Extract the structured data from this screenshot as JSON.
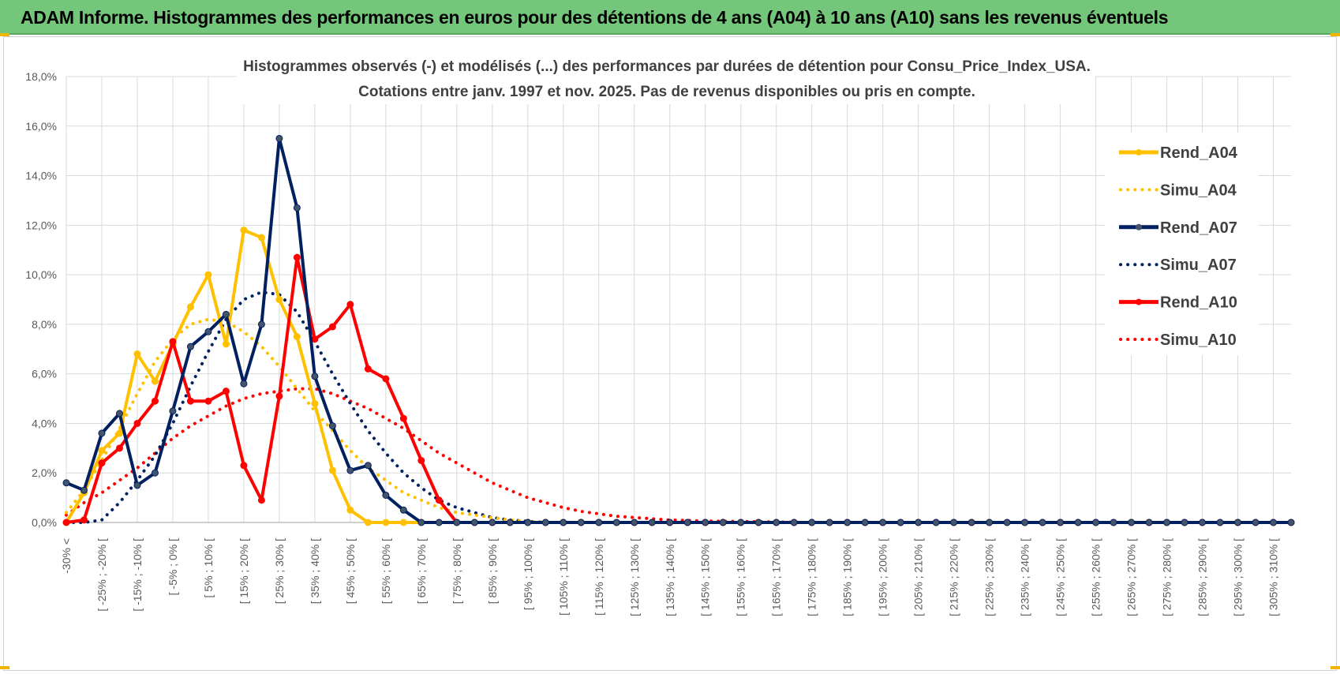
{
  "banner": {
    "title": "ADAM Informe. Histogrammes des performances en euros pour des détentions de 4 ans (A04) à 10 ans (A10) sans les revenus éventuels"
  },
  "colors": {
    "banner_bg": "#74c67a",
    "A04": "#ffc000",
    "A07": "#002060",
    "A10": "#ff0000",
    "grid": "#d9d9d9"
  },
  "chart_data": {
    "type": "line",
    "title": [
      "Histogrammes observés (-) et modélisés (...) des performances par durées de détention pour Consu_Price_Index_USA.",
      "Cotations entre janv. 1997 et nov. 2025. Pas de revenus disponibles ou pris en compte."
    ],
    "xlabel": "",
    "ylabel": "",
    "ylim": [
      0,
      0.18
    ],
    "y_ticks": [
      "0,0%",
      "2,0%",
      "4,0%",
      "6,0%",
      "8,0%",
      "10,0%",
      "12,0%",
      "14,0%",
      "16,0%",
      "18,0%"
    ],
    "x_tick_labels": [
      "-30% <",
      "[ -25% ; -20% [",
      "[ -15% ; -10% [",
      "[ -5% ; 0% [",
      "[ 5% ; 10% [",
      "[ 15% ; 20% [",
      "[ 25% ; 30% [",
      "[ 35% ; 40% [",
      "[ 45% ; 50% [",
      "[ 55% ; 60% [",
      "[ 65% ; 70% [",
      "[ 75% ; 80% [",
      "[ 85% ; 90% [",
      "[ 95% ; 100% [",
      "[ 105% ; 110% [",
      "[ 115% ; 120% [",
      "[ 125% ; 130% [",
      "[ 135% ; 140% [",
      "[ 145% ; 150% [",
      "[ 155% ; 160% [",
      "[ 165% ; 170% [",
      "[ 175% ; 180% [",
      "[ 185% ; 190% [",
      "[ 195% ; 200% [",
      "[ 205% ; 210% [",
      "[ 215% ; 220% [",
      "[ 225% ; 230% [",
      "[ 235% ; 240% [",
      "[ 245% ; 250% [",
      "[ 255% ; 260% [",
      "[ 265% ; 270% [",
      "[ 275% ; 280% [",
      "[ 285% ; 290% [",
      "[ 295% ; 300% [",
      "[ 305% ; 310% ["
    ],
    "x_major_labels": [
      "-30% <",
      "[ -25% ; -20% [",
      "[ -15% ; -10% [",
      "[ -5% ; 0% [",
      "[ 5% ; 10% [",
      "[ 15% ; 20% [",
      "[ 25% ; 30% [",
      "[ 35% ; 40% [",
      "[ 45% ; 50% [",
      "[ 55% ; 60% [",
      "[ 65% ; 70% [",
      "[ 75% ; 80% [",
      "[ 85% ; 90% [",
      "[ 95% ; 100% [",
      "[ 105% ; 110% [",
      "[ 115% ; 120% [",
      "[ 125% ; 130% [",
      "[ 135% ; 140% [",
      "[ 145% ; 150% [",
      "[ 155% ; 160% [",
      "[ 165% ; 170% [",
      "[ 175% ; 180% [",
      "[ 185% ; 190% [",
      "[ 195% ; 200% [",
      "[ 205% ; 210% [",
      "[ 215% ; 220% [",
      "[ 225% ; 230% [",
      "[ 235% ; 240% [",
      "[ 245% ; 250% [",
      "[ 255% ; 260% [",
      "[ 265% ; 270% [",
      "[ 275% ; 280% [",
      "[ 285% ; 290% [",
      "[ 295% ; 300% [",
      "[ 305% ; 310% ["
    ],
    "bins_count": 70,
    "legend_position": "right",
    "series": [
      {
        "name": "Rend_A04",
        "style": "solid",
        "color": "#ffc000",
        "values": [
          0.0,
          0.012,
          0.029,
          0.036,
          0.068,
          0.057,
          0.072,
          0.087,
          0.1,
          0.072,
          0.118,
          0.115,
          0.09,
          0.075,
          0.048,
          0.021,
          0.005,
          0.0,
          0.0,
          0.0,
          0.0,
          0.0,
          0.0,
          0.0,
          0.0,
          0.0,
          0.0,
          0.0,
          0.0,
          0.0,
          0.0,
          0.0,
          0.0,
          0.0,
          0.0,
          0.0,
          0.0,
          0.0,
          0.0,
          0.0,
          0.0,
          0.0,
          0.0,
          0.0,
          0.0,
          0.0,
          0.0,
          0.0,
          0.0,
          0.0,
          0.0,
          0.0,
          0.0,
          0.0,
          0.0,
          0.0,
          0.0,
          0.0,
          0.0,
          0.0,
          0.0,
          0.0,
          0.0,
          0.0,
          0.0,
          0.0,
          0.0,
          0.0,
          0.0,
          0.0
        ]
      },
      {
        "name": "Simu_A04",
        "style": "dotted",
        "color": "#ffc000",
        "values": [
          0.004,
          0.013,
          0.025,
          0.038,
          0.052,
          0.065,
          0.074,
          0.08,
          0.082,
          0.081,
          0.077,
          0.071,
          0.063,
          0.054,
          0.045,
          0.037,
          0.029,
          0.022,
          0.017,
          0.012,
          0.009,
          0.006,
          0.004,
          0.003,
          0.002,
          0.001,
          0.0005,
          0.0,
          0.0,
          0.0,
          0.0,
          0.0,
          0.0,
          0.0,
          0.0,
          0.0,
          0.0,
          0.0,
          0.0,
          0.0,
          0.0,
          0.0,
          0.0,
          0.0,
          0.0,
          0.0,
          0.0,
          0.0,
          0.0,
          0.0,
          0.0,
          0.0,
          0.0,
          0.0,
          0.0,
          0.0,
          0.0,
          0.0,
          0.0,
          0.0,
          0.0,
          0.0,
          0.0,
          0.0,
          0.0,
          0.0,
          0.0,
          0.0,
          0.0,
          0.0
        ]
      },
      {
        "name": "Rend_A07",
        "style": "solid",
        "color": "#002060",
        "values": [
          0.016,
          0.013,
          0.036,
          0.044,
          0.015,
          0.02,
          0.045,
          0.071,
          0.077,
          0.084,
          0.056,
          0.08,
          0.155,
          0.127,
          0.059,
          0.039,
          0.021,
          0.023,
          0.011,
          0.005,
          0.0,
          0.0,
          0.0,
          0.0,
          0.0,
          0.0,
          0.0,
          0.0,
          0.0,
          0.0,
          0.0,
          0.0,
          0.0,
          0.0,
          0.0,
          0.0,
          0.0,
          0.0,
          0.0,
          0.0,
          0.0,
          0.0,
          0.0,
          0.0,
          0.0,
          0.0,
          0.0,
          0.0,
          0.0,
          0.0,
          0.0,
          0.0,
          0.0,
          0.0,
          0.0,
          0.0,
          0.0,
          0.0,
          0.0,
          0.0,
          0.0,
          0.0,
          0.0,
          0.0,
          0.0,
          0.0,
          0.0,
          0.0,
          0.0,
          0.0
        ]
      },
      {
        "name": "Simu_A07",
        "style": "dotted",
        "color": "#002060",
        "values": [
          0.0,
          0.0,
          0.001,
          0.008,
          0.017,
          0.027,
          0.04,
          0.055,
          0.069,
          0.082,
          0.09,
          0.093,
          0.092,
          0.085,
          0.073,
          0.06,
          0.048,
          0.037,
          0.028,
          0.02,
          0.014,
          0.009,
          0.006,
          0.004,
          0.002,
          0.001,
          0.0005,
          0.0,
          0.0,
          0.0,
          0.0,
          0.0,
          0.0,
          0.0,
          0.0,
          0.0,
          0.0,
          0.0,
          0.0,
          0.0,
          0.0,
          0.0,
          0.0,
          0.0,
          0.0,
          0.0,
          0.0,
          0.0,
          0.0,
          0.0,
          0.0,
          0.0,
          0.0,
          0.0,
          0.0,
          0.0,
          0.0,
          0.0,
          0.0,
          0.0,
          0.0,
          0.0,
          0.0,
          0.0,
          0.0,
          0.0,
          0.0,
          0.0,
          0.0,
          0.0
        ]
      },
      {
        "name": "Rend_A10",
        "style": "solid",
        "color": "#ff0000",
        "values": [
          0.0,
          0.001,
          0.024,
          0.03,
          0.04,
          0.049,
          0.073,
          0.049,
          0.049,
          0.053,
          0.023,
          0.009,
          0.051,
          0.107,
          0.074,
          0.079,
          0.088,
          0.062,
          0.058,
          0.042,
          0.025,
          0.009,
          0.0,
          0.0,
          0.0,
          0.0,
          0.0,
          0.0,
          0.0,
          0.0,
          0.0,
          0.0,
          0.0,
          0.0,
          0.0,
          0.0,
          0.0,
          0.0,
          0.0,
          0.0,
          0.0,
          0.0,
          0.0,
          0.0,
          0.0,
          0.0,
          0.0,
          0.0,
          0.0,
          0.0,
          0.0,
          0.0,
          0.0,
          0.0,
          0.0,
          0.0,
          0.0,
          0.0,
          0.0,
          0.0,
          0.0,
          0.0,
          0.0,
          0.0,
          0.0,
          0.0,
          0.0,
          0.0,
          0.0,
          0.0
        ]
      },
      {
        "name": "Simu_A10",
        "style": "dotted",
        "color": "#ff0000",
        "values": [
          0.003,
          0.008,
          0.012,
          0.017,
          0.022,
          0.028,
          0.034,
          0.039,
          0.043,
          0.047,
          0.05,
          0.052,
          0.053,
          0.054,
          0.054,
          0.052,
          0.049,
          0.046,
          0.042,
          0.038,
          0.033,
          0.028,
          0.024,
          0.02,
          0.016,
          0.013,
          0.01,
          0.008,
          0.006,
          0.0045,
          0.0035,
          0.0025,
          0.002,
          0.0015,
          0.001,
          0.0008,
          0.0006,
          0.0005,
          0.0004,
          0.0003,
          0.0002,
          0.0001,
          0.0,
          0.0,
          0.0,
          0.0,
          0.0,
          0.0,
          0.0,
          0.0,
          0.0,
          0.0,
          0.0,
          0.0,
          0.0,
          0.0,
          0.0,
          0.0,
          0.0,
          0.0,
          0.0,
          0.0,
          0.0,
          0.0,
          0.0,
          0.0,
          0.0,
          0.0,
          0.0,
          0.0
        ]
      }
    ]
  }
}
